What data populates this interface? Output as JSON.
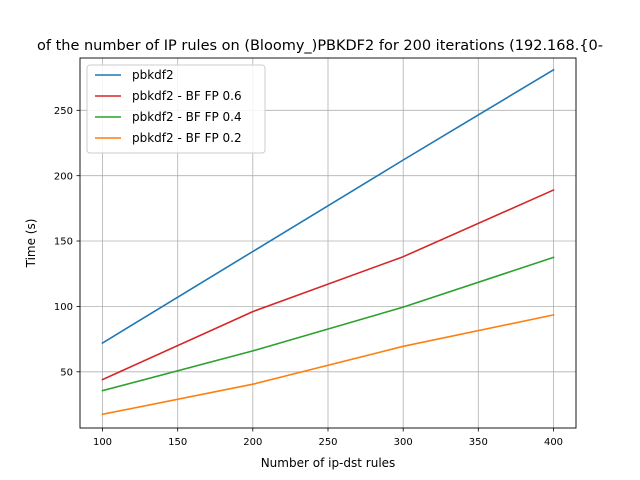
{
  "chart_data": {
    "type": "line",
    "title": "of the number of IP rules on (Bloomy_)PBKDF2 for 200 iterations (192.168.{0-",
    "xlabel": "Number of ip-dst rules",
    "ylabel": "Time (s)",
    "xlim": [
      85,
      415
    ],
    "ylim": [
      7,
      290
    ],
    "x_ticks": [
      100,
      150,
      200,
      250,
      300,
      350,
      400
    ],
    "y_ticks": [
      50,
      100,
      150,
      200,
      250
    ],
    "grid": true,
    "legend_position": "top-left",
    "series": [
      {
        "name": "pbkdf2",
        "color": "#1f77b4",
        "x": [
          100,
          200,
          300,
          400
        ],
        "y": [
          72,
          142,
          212,
          281
        ]
      },
      {
        "name": "pbkdf2 - BF FP 0.6",
        "color": "#d62728",
        "x": [
          100,
          200,
          300,
          400
        ],
        "y": [
          44,
          96,
          138,
          189
        ]
      },
      {
        "name": "pbkdf2 - BF FP 0.4",
        "color": "#2ca02c",
        "x": [
          100,
          200,
          300,
          400
        ],
        "y": [
          35.5,
          66,
          99.5,
          137.5
        ]
      },
      {
        "name": "pbkdf2 - BF FP 0.2",
        "color": "#ff7f0e",
        "x": [
          100,
          200,
          300,
          400
        ],
        "y": [
          17.5,
          40.5,
          69.5,
          93.5
        ]
      }
    ]
  }
}
